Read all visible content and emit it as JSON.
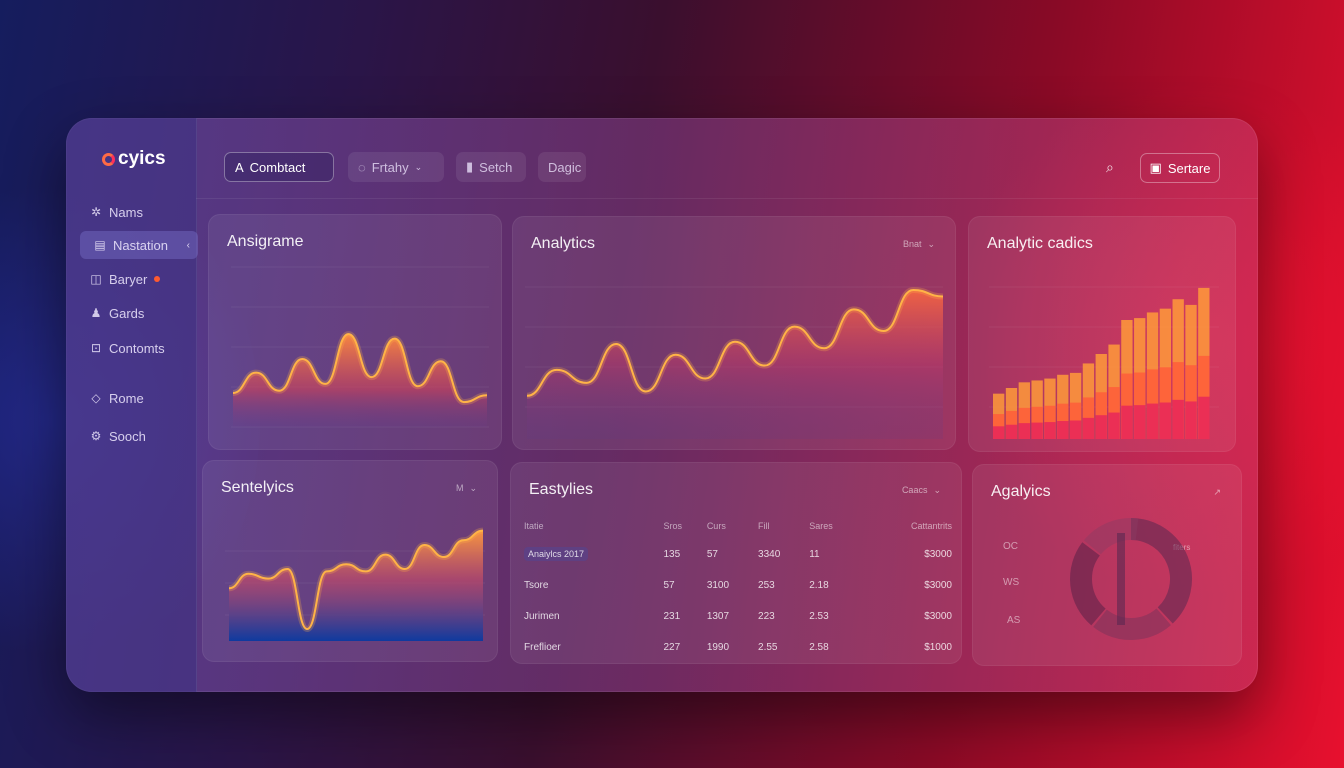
{
  "app": {
    "name": "cyics"
  },
  "colors": {
    "accent": "#ff6a3d",
    "accent2": "#ff2f5a",
    "line": "#ffb347"
  },
  "sidebar": {
    "items": [
      {
        "label": "Nams",
        "icon": "sparkle-icon"
      },
      {
        "label": "Nastation",
        "icon": "calendar-icon",
        "active": true
      },
      {
        "label": "Baryer",
        "icon": "chat-icon",
        "badge": true
      },
      {
        "label": "Gards",
        "icon": "user-icon"
      },
      {
        "label": "Contomts",
        "icon": "folder-icon"
      },
      {
        "label": "Rome",
        "icon": "diamond-icon"
      },
      {
        "label": "Sooch",
        "icon": "gear-icon"
      }
    ]
  },
  "topbar": {
    "contact_label": "Combtact",
    "filter_label": "Frtahy",
    "search_label": "Setch",
    "tab_label": "Dagic",
    "settings_label": "Sertare"
  },
  "cards": {
    "c1": {
      "title": "Ansigrame"
    },
    "c2": {
      "title": "Analytics",
      "control": "Bnat"
    },
    "c3": {
      "title": "Analytic cadics"
    },
    "c4": {
      "title": "Sentelyics",
      "control": "M"
    },
    "c5": {
      "title": "Eastylies",
      "control": "Caacs"
    },
    "c6": {
      "title": "Agalyics"
    }
  },
  "table": {
    "headers": [
      "Itatie",
      "Sros",
      "Curs",
      "Fill",
      "Sares",
      "Cattantrits"
    ],
    "rows": [
      [
        "Anaiylcs 2017",
        "135",
        "57",
        "3340",
        "11",
        "$3000"
      ],
      [
        "Tsore",
        "57",
        "3100",
        "253",
        "2.18",
        "$3000"
      ],
      [
        "Jurimen",
        "231",
        "1307",
        "223",
        "2.53",
        "$3000"
      ],
      [
        "Freflioer",
        "227",
        "1990",
        "2.55",
        "2.58",
        "$1000"
      ]
    ]
  },
  "donut": {
    "labels": [
      "OC",
      "WS",
      "AS"
    ],
    "tag": "fiters"
  },
  "chart_data": [
    {
      "type": "area",
      "title": "Ansigrame",
      "y": [
        30,
        48,
        32,
        60,
        38,
        82,
        44,
        78,
        36,
        58,
        22,
        28
      ]
    },
    {
      "type": "area",
      "title": "Analytics",
      "y": [
        40,
        64,
        52,
        88,
        44,
        78,
        56,
        90,
        68,
        104,
        84,
        120,
        100,
        138,
        132
      ]
    },
    {
      "type": "bar",
      "title": "Analytic cadics",
      "values": [
        48,
        54,
        60,
        62,
        64,
        68,
        70,
        80,
        90,
        100,
        126,
        128,
        134,
        138,
        148,
        142,
        160
      ]
    },
    {
      "type": "area",
      "title": "Sentelyics",
      "y": [
        44,
        56,
        52,
        60,
        10,
        58,
        64,
        58,
        72,
        60,
        80,
        70,
        84,
        92
      ]
    },
    {
      "type": "pie",
      "title": "Agalyics",
      "values": [
        38,
        22,
        24,
        16
      ]
    }
  ]
}
